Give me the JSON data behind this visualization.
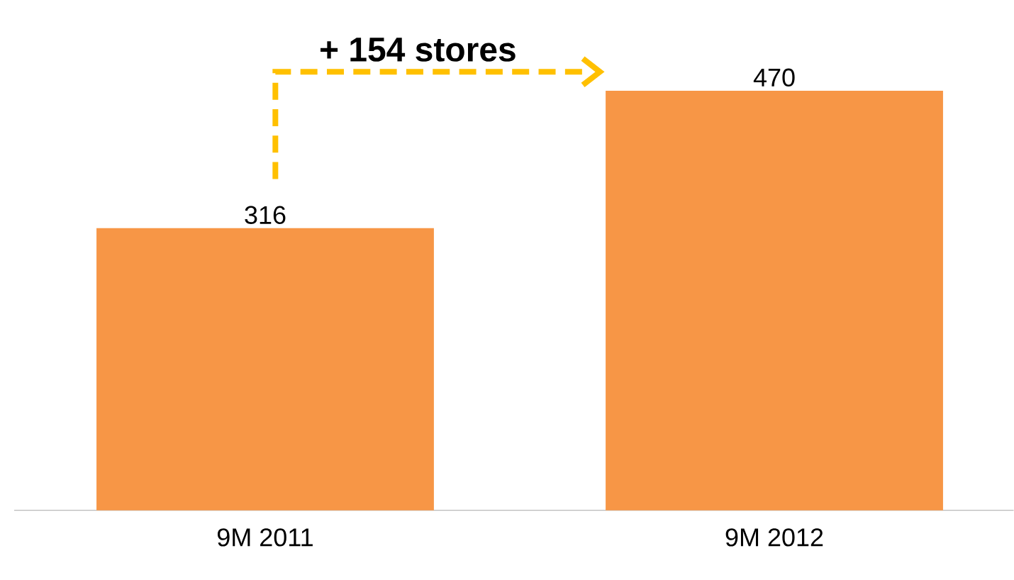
{
  "chart_data": {
    "type": "bar",
    "categories": [
      "9M 2011",
      "9M 2012"
    ],
    "values": [
      316,
      470
    ],
    "color": "#f79646",
    "data_labels": true,
    "annotations": [
      "+ 154 stores"
    ]
  }
}
